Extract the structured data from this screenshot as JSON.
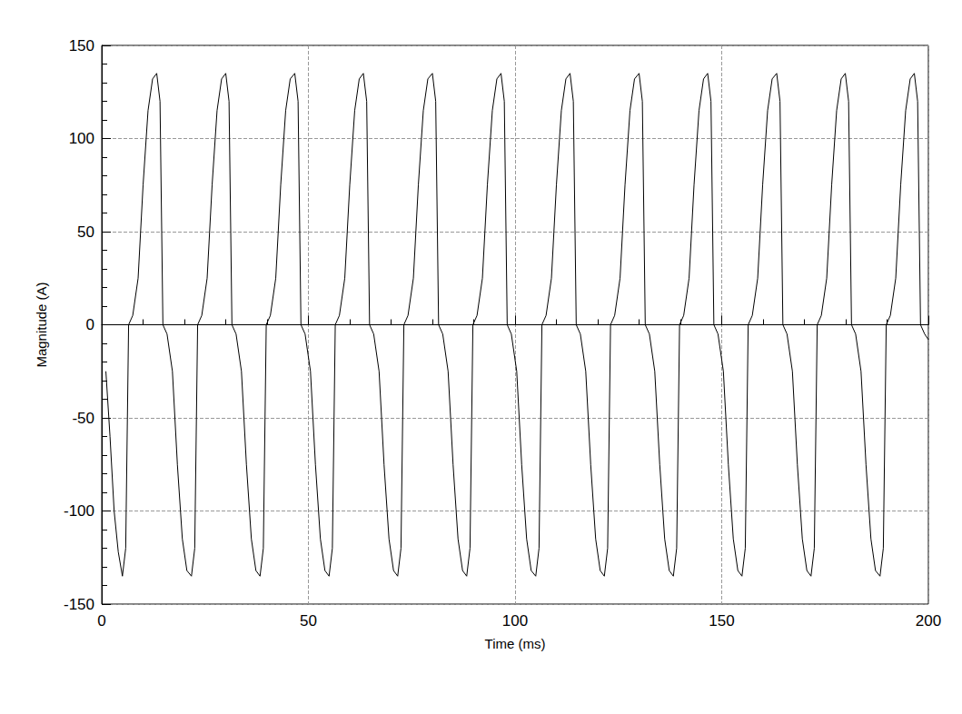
{
  "chart_data": {
    "type": "line",
    "xlabel": "Time (ms)",
    "ylabel": "Magnitude (A)",
    "xlim": [
      0,
      200
    ],
    "xticks": [
      0,
      50,
      100,
      150,
      200
    ],
    "ylim": [
      -150,
      150
    ],
    "yticks": [
      -150,
      -100,
      -50,
      0,
      50,
      100,
      150
    ],
    "grid": true,
    "color": "#000000",
    "x": [
      1.0,
      2.0,
      3.0,
      4.0,
      5.0,
      5.8,
      6.5,
      7.5,
      8.8,
      10.0,
      11.2,
      12.3,
      13.3,
      14.1,
      14.8,
      15.8,
      17.1,
      18.3,
      19.5,
      20.6,
      21.7,
      22.5,
      23.2,
      24.2,
      25.5,
      26.7,
      27.9,
      29.0,
      30.0,
      30.8,
      31.5,
      32.5,
      33.8,
      35.0,
      36.2,
      37.3,
      38.3,
      39.1,
      39.8,
      40.8,
      42.1,
      43.3,
      44.5,
      45.6,
      46.7,
      47.5,
      48.2,
      49.2,
      50.5,
      51.7,
      52.9,
      54.0,
      55.0,
      55.8,
      56.5,
      57.5,
      58.8,
      60.0,
      61.2,
      62.3,
      63.3,
      64.1,
      64.8,
      65.8,
      67.1,
      68.3,
      69.5,
      70.6,
      71.6,
      72.4,
      73.1,
      74.1,
      75.4,
      76.6,
      77.8,
      78.9,
      80.0,
      80.8,
      81.5,
      82.5,
      83.8,
      85.0,
      86.2,
      87.3,
      88.3,
      89.1,
      89.8,
      90.8,
      92.1,
      93.3,
      94.5,
      95.6,
      96.6,
      97.4,
      98.1,
      99.1,
      100.4,
      101.6,
      102.8,
      103.9,
      105.0,
      105.8,
      106.5,
      107.5,
      108.8,
      110.0,
      111.2,
      112.3,
      113.3,
      114.1,
      114.8,
      115.8,
      117.1,
      118.3,
      119.5,
      120.6,
      121.6,
      122.4,
      123.1,
      124.1,
      125.4,
      126.6,
      127.8,
      128.9,
      130.0,
      130.8,
      131.5,
      132.5,
      133.8,
      135.0,
      136.2,
      137.3,
      138.3,
      139.1,
      139.8,
      140.8,
      142.1,
      143.3,
      144.5,
      145.6,
      146.6,
      147.4,
      148.1,
      149.1,
      150.4,
      151.6,
      152.8,
      153.9,
      154.9,
      155.7,
      156.4,
      157.4,
      158.7,
      159.9,
      161.1,
      162.2,
      163.3,
      164.1,
      164.8,
      165.8,
      167.1,
      168.3,
      169.5,
      170.6,
      171.6,
      172.4,
      173.1,
      174.1,
      175.4,
      176.6,
      177.8,
      178.9,
      179.9,
      180.7,
      181.4,
      182.4,
      183.7,
      184.9,
      186.1,
      187.2,
      188.3,
      189.1,
      189.8,
      190.8,
      192.1,
      193.3,
      194.5,
      195.6,
      196.6,
      197.4,
      198.1,
      199.1,
      200.0
    ],
    "values": [
      -25,
      -60,
      -100,
      -122,
      -135,
      -120,
      0,
      5,
      25,
      75,
      115,
      132,
      135,
      120,
      0,
      -5,
      -25,
      -75,
      -115,
      -132,
      -135,
      -120,
      0,
      5,
      25,
      75,
      115,
      132,
      135,
      120,
      0,
      -5,
      -25,
      -75,
      -115,
      -132,
      -135,
      -120,
      0,
      5,
      25,
      75,
      115,
      132,
      135,
      120,
      0,
      -5,
      -25,
      -75,
      -115,
      -132,
      -135,
      -120,
      0,
      5,
      25,
      75,
      115,
      132,
      135,
      120,
      0,
      -5,
      -25,
      -75,
      -115,
      -132,
      -135,
      -120,
      0,
      5,
      25,
      75,
      115,
      132,
      135,
      120,
      0,
      -5,
      -25,
      -75,
      -115,
      -132,
      -135,
      -120,
      0,
      5,
      25,
      75,
      115,
      132,
      135,
      120,
      0,
      -5,
      -25,
      -75,
      -115,
      -132,
      -135,
      -120,
      0,
      5,
      25,
      75,
      115,
      132,
      135,
      120,
      0,
      -5,
      -25,
      -75,
      -115,
      -132,
      -135,
      -120,
      0,
      5,
      25,
      75,
      115,
      132,
      135,
      120,
      0,
      -5,
      -25,
      -75,
      -115,
      -132,
      -135,
      -120,
      0,
      5,
      25,
      75,
      115,
      132,
      135,
      120,
      0,
      -5,
      -25,
      -75,
      -115,
      -132,
      -135,
      -120,
      0,
      5,
      25,
      75,
      115,
      132,
      135,
      120,
      0,
      -5,
      -25,
      -75,
      -115,
      -132,
      -135,
      -120,
      0,
      5,
      25,
      75,
      115,
      132,
      135,
      120,
      0,
      -5,
      -25,
      -75,
      -115,
      -132,
      -135,
      -120,
      0,
      5,
      25,
      75,
      115,
      132,
      135,
      120,
      0,
      -5,
      -8
    ]
  }
}
